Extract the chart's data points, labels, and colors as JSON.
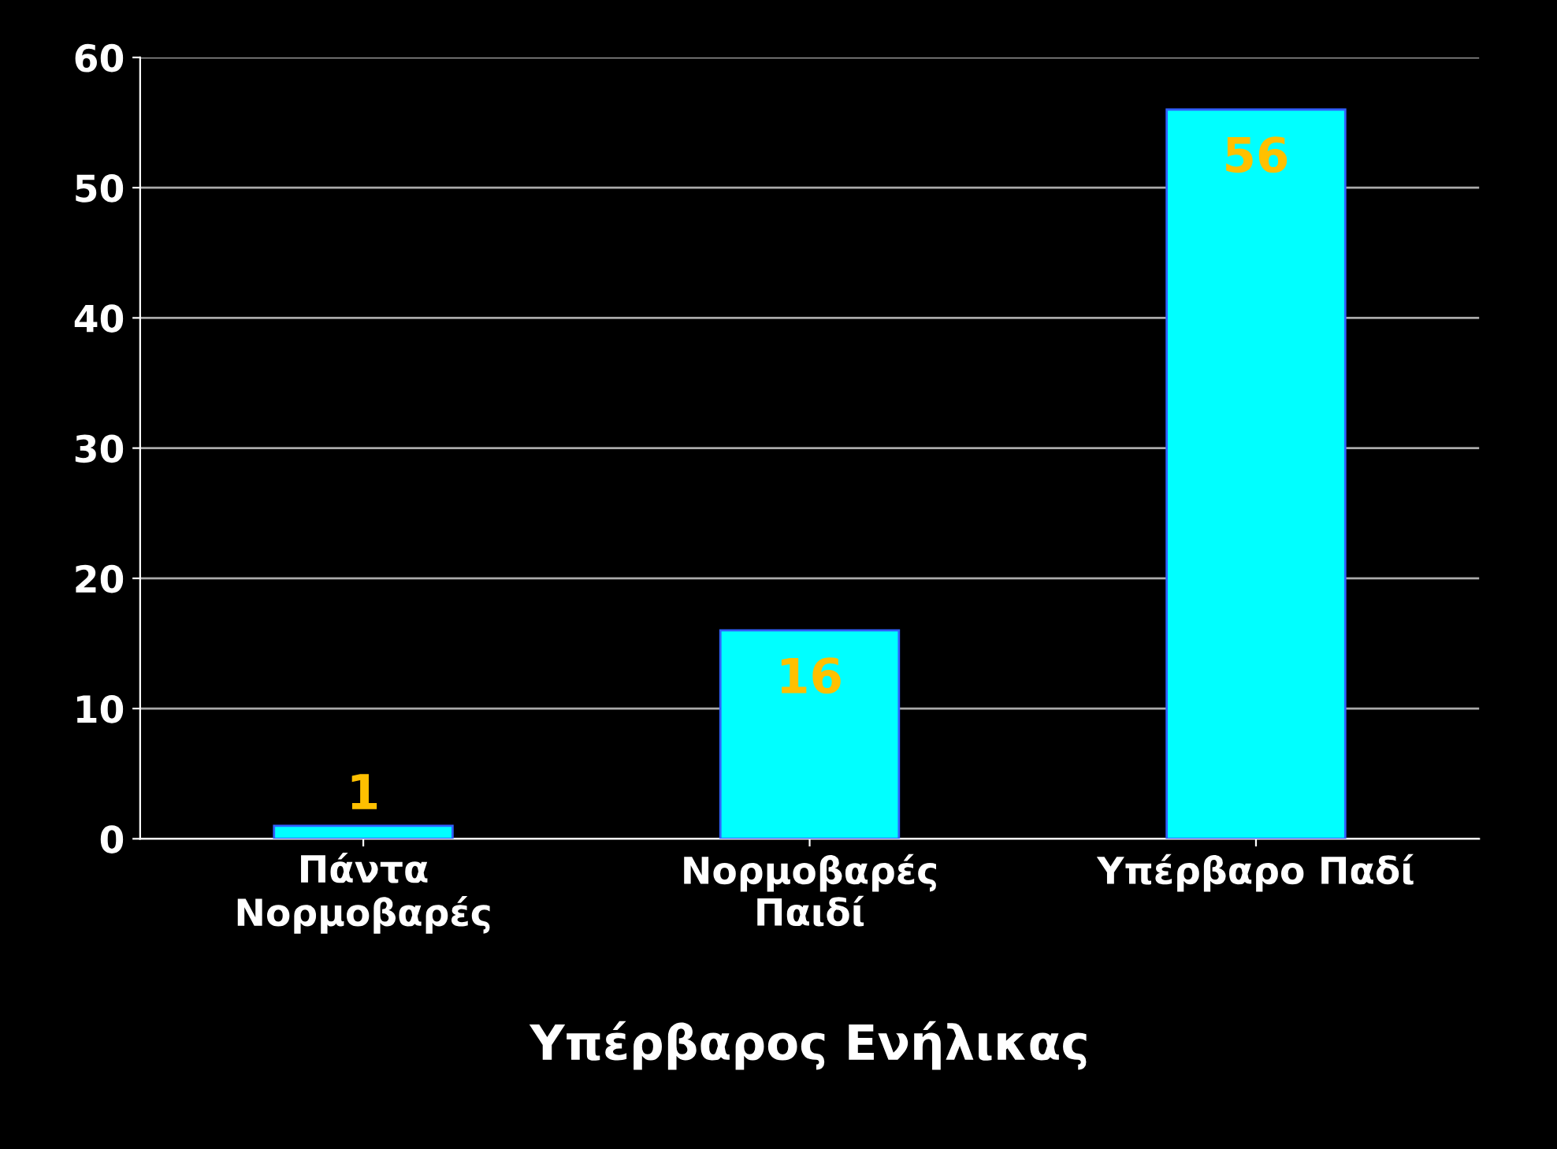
{
  "chart_data": {
    "type": "bar",
    "xlabel": "Υπέρβαρος Ενήλικας",
    "categories": [
      "Πάντα\nΝορμοβαρές",
      "Νορμοβαρές\nΠαιδί",
      "Υπέρβαρο Παδί"
    ],
    "values": [
      1,
      16,
      56
    ],
    "color": "#00ffff",
    "ylim": [
      0,
      60
    ],
    "yticks": [
      0,
      10,
      20,
      30,
      40,
      50,
      60
    ],
    "grid": "y",
    "data_labels": true
  }
}
